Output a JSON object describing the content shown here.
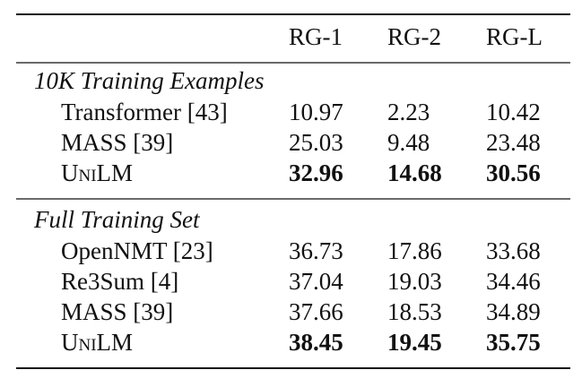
{
  "table": {
    "header": [
      "RG-1",
      "RG-2",
      "RG-L"
    ],
    "sections": [
      {
        "title": "10K Training Examples",
        "rows": [
          {
            "label": "Transformer [43]",
            "values": [
              10.97,
              2.23,
              10.42
            ]
          },
          {
            "label": "MASS [39]",
            "values": [
              25.03,
              9.48,
              23.48
            ]
          },
          {
            "label": "UniLM",
            "values": [
              32.96,
              14.68,
              30.56
            ],
            "bold": true,
            "small_caps": true
          }
        ]
      },
      {
        "title": "Full Training Set",
        "rows": [
          {
            "label": "OpenNMT [23]",
            "values": [
              36.73,
              17.86,
              33.68
            ]
          },
          {
            "label": "Re3Sum [4]",
            "values": [
              37.04,
              19.03,
              34.46
            ]
          },
          {
            "label": "MASS [39]",
            "values": [
              37.66,
              18.53,
              34.89
            ]
          },
          {
            "label": "UniLM",
            "values": [
              38.45,
              19.45,
              35.75
            ],
            "bold": true,
            "small_caps": true
          }
        ]
      }
    ]
  }
}
